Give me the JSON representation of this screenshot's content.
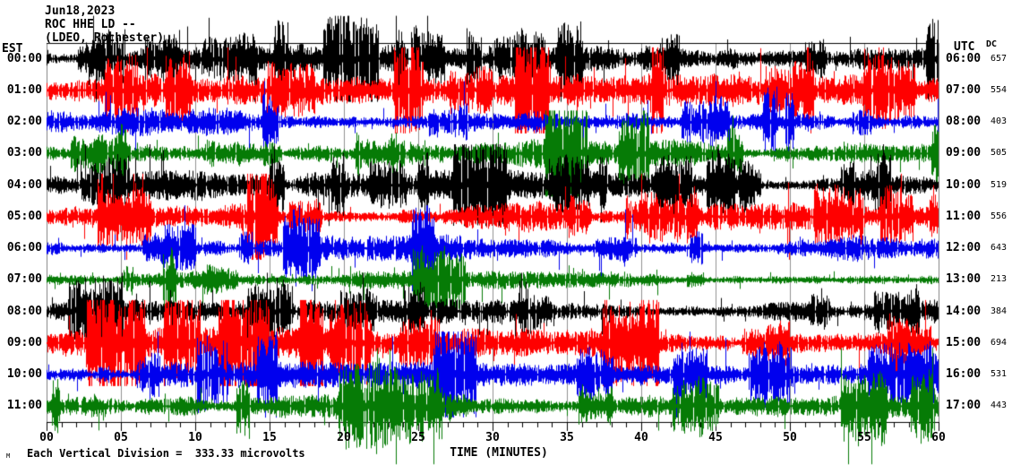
{
  "header": {
    "date": "Jun18,2023",
    "station_line": "ROC HHE LD --",
    "network_line": "(LDEO, Rochester)"
  },
  "axes": {
    "left_label": "EST",
    "right_label": "UTC",
    "dc_label": "DC",
    "x_title": "TIME (MINUTES)",
    "x_tick_labels": [
      "00",
      "05",
      "10",
      "15",
      "20",
      "25",
      "30",
      "35",
      "40",
      "45",
      "50",
      "55",
      "60"
    ]
  },
  "footer": {
    "scale_note": "Each Vertical Division =  333.33 microvolts",
    "corner_mark": "M"
  },
  "chart_data": {
    "type": "line",
    "subtype": "helicorder-seismogram",
    "title": "ROC HHE LD -- (LDEO, Rochester) Jun18,2023",
    "xlabel": "TIME (MINUTES)",
    "x_range_minutes": [
      0,
      60
    ],
    "x_major_tick": 5,
    "x_minor_tick": 1,
    "minutes_per_row": 60,
    "scale_note": "Each Vertical Division = 333.33 microvolts",
    "grid": true,
    "colors": {
      "background": "#FFFFFF",
      "grid": "#909090",
      "frame_side": "#808080",
      "frame_top_bottom": "#000000",
      "text": "#000000"
    },
    "rows": [
      {
        "est": "00:00",
        "utc": "06:00",
        "dc": 657,
        "color": "#000000",
        "relative_amplitude": 1.0,
        "spike_level": 1.0
      },
      {
        "est": "01:00",
        "utc": "07:00",
        "dc": 554,
        "color": "#FF0000",
        "relative_amplitude": 1.12,
        "spike_level": 1.0
      },
      {
        "est": "02:00",
        "utc": "08:00",
        "dc": 403,
        "color": "#0000EE",
        "relative_amplitude": 1.0,
        "spike_level": 0.95
      },
      {
        "est": "03:00",
        "utc": "09:00",
        "dc": 505,
        "color": "#067B06",
        "relative_amplitude": 1.02,
        "spike_level": 1.0
      },
      {
        "est": "04:00",
        "utc": "10:00",
        "dc": 519,
        "color": "#000000",
        "relative_amplitude": 1.05,
        "spike_level": 0.95
      },
      {
        "est": "05:00",
        "utc": "11:00",
        "dc": 556,
        "color": "#FF0000",
        "relative_amplitude": 1.1,
        "spike_level": 1.0
      },
      {
        "est": "06:00",
        "utc": "12:00",
        "dc": 643,
        "color": "#0000EE",
        "relative_amplitude": 0.95,
        "spike_level": 1.0
      },
      {
        "est": "07:00",
        "utc": "13:00",
        "dc": 213,
        "color": "#067B06",
        "relative_amplitude": 0.62,
        "spike_level": 0.8
      },
      {
        "est": "08:00",
        "utc": "14:00",
        "dc": 384,
        "color": "#000000",
        "relative_amplitude": 0.9,
        "spike_level": 0.9
      },
      {
        "est": "09:00",
        "utc": "15:00",
        "dc": 694,
        "color": "#FF0000",
        "relative_amplitude": 1.12,
        "spike_level": 1.0
      },
      {
        "est": "10:00",
        "utc": "16:00",
        "dc": 531,
        "color": "#0000EE",
        "relative_amplitude": 0.95,
        "spike_level": 1.0
      },
      {
        "est": "11:00",
        "utc": "17:00",
        "dc": 443,
        "color": "#067B06",
        "relative_amplitude": 1.15,
        "spike_level": 1.35
      }
    ]
  }
}
